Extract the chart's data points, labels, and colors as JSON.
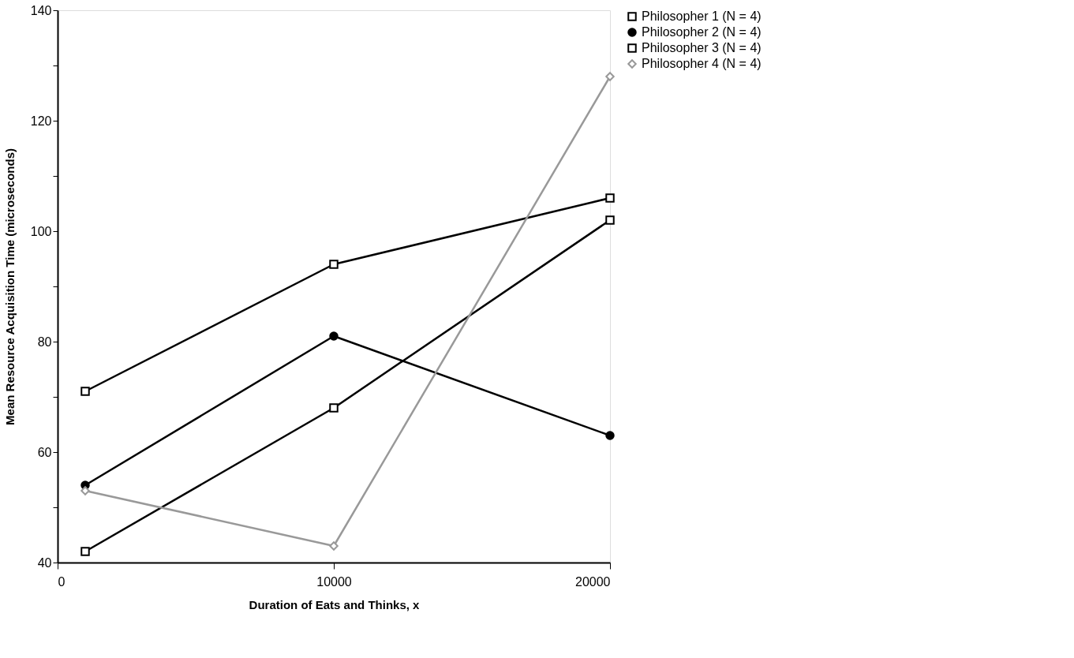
{
  "chart_data": {
    "type": "line",
    "xlabel": "Duration of Eats and Thinks, x",
    "ylabel": "Mean  Resource  Acquisition  Time  (microseconds)",
    "x": [
      1000,
      10000,
      20000
    ],
    "series": [
      {
        "name": "Philosopher 1 (N = 4)",
        "color": "#000000",
        "marker": "square",
        "values": [
          71,
          94,
          106
        ]
      },
      {
        "name": "Philosopher 2 (N = 4)",
        "color": "#000000",
        "marker": "circle",
        "values": [
          54,
          81,
          63
        ]
      },
      {
        "name": "Philosopher 3 (N = 4)",
        "color": "#000000",
        "marker": "square",
        "values": [
          42,
          68,
          102
        ]
      },
      {
        "name": "Philosopher 4 (N = 4)",
        "color": "#999999",
        "marker": "diamond",
        "values": [
          53,
          43,
          128
        ]
      }
    ],
    "xlim": [
      0,
      20000
    ],
    "xticks": [
      0,
      10000,
      20000
    ],
    "ylim": [
      40,
      140
    ],
    "yticks": [
      40,
      {
        "value": 50,
        "label": null
      },
      60,
      {
        "value": 70,
        "label": null
      },
      80,
      {
        "value": 90,
        "label": null
      },
      100,
      {
        "value": 110,
        "label": null
      },
      120,
      {
        "value": 130,
        "label": null
      },
      140
    ],
    "grid": false,
    "legend": "right",
    "line_style": "solid"
  }
}
